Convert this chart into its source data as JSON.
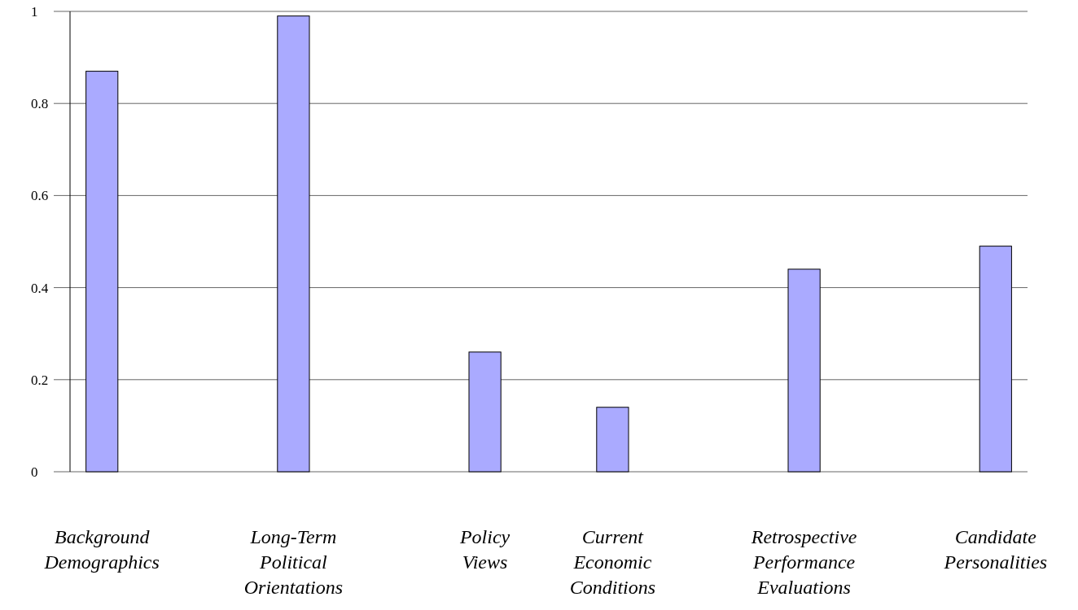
{
  "chart_data": {
    "type": "bar",
    "categories": [
      "Background Demographics",
      null,
      null,
      "Long-Term Political Orientations",
      null,
      null,
      "Policy Views",
      null,
      "Current Economic Conditions",
      null,
      null,
      "Retrospective Performance Evaluations",
      null,
      null,
      "Candidate Personalities"
    ],
    "values": [
      0.87,
      null,
      null,
      0.99,
      null,
      null,
      0.26,
      null,
      0.14,
      null,
      null,
      0.44,
      null,
      null,
      0.49
    ],
    "color": "#aaaaff",
    "ylim": [
      0,
      1
    ],
    "yticks": [
      0,
      0.2,
      0.4,
      0.6,
      0.8,
      1
    ],
    "grid": "y"
  }
}
